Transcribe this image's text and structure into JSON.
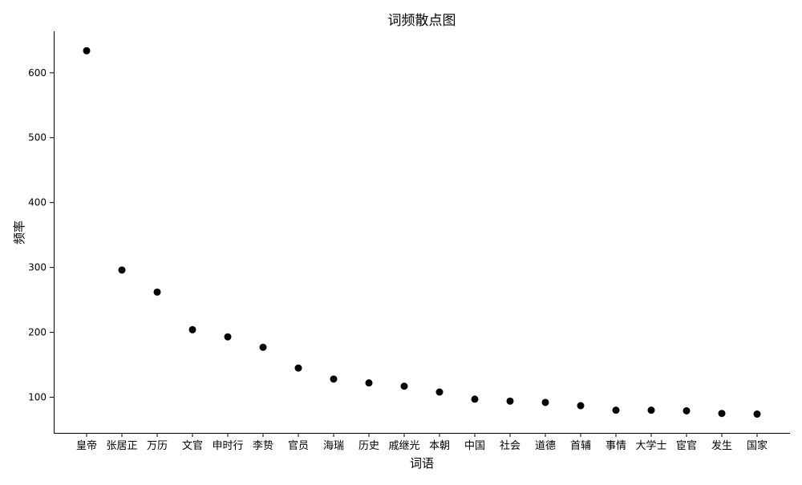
{
  "chart_data": {
    "type": "scatter",
    "title": "词频散点图",
    "xlabel": "词语",
    "ylabel": "频率",
    "categories": [
      "皇帝",
      "张居正",
      "万历",
      "文官",
      "申时行",
      "李贽",
      "官员",
      "海瑞",
      "历史",
      "戚继光",
      "本朝",
      "中国",
      "社会",
      "道德",
      "首辅",
      "事情",
      "大学士",
      "宦官",
      "发生",
      "国家"
    ],
    "values": [
      634,
      296,
      262,
      204,
      193,
      177,
      145,
      128,
      122,
      117,
      108,
      97,
      94,
      92,
      87,
      80,
      80,
      79,
      75,
      74
    ],
    "yticks": [
      100,
      200,
      300,
      400,
      500,
      600
    ],
    "ylim": [
      45,
      664
    ],
    "grid": false,
    "marker_color": "#000000"
  }
}
